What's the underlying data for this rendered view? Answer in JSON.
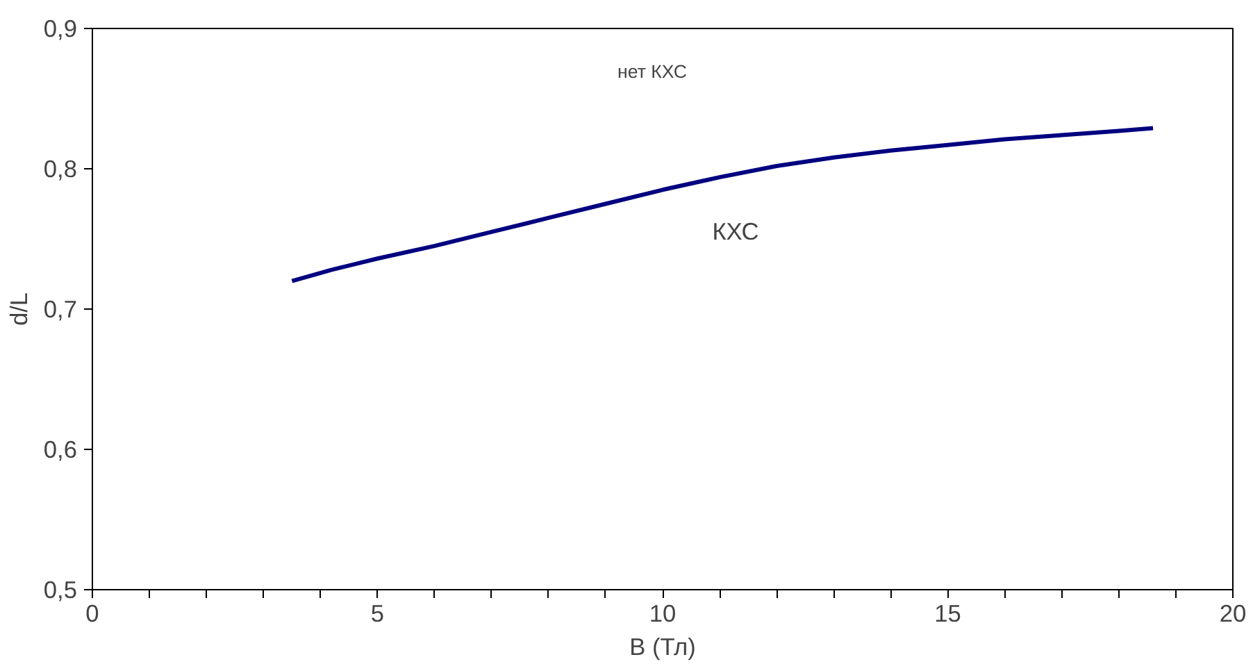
{
  "chart_data": {
    "type": "line",
    "xlabel": "B (Тл)",
    "ylabel": "d/L",
    "x": [
      3.5,
      4.2,
      5,
      6,
      7,
      8,
      9,
      10,
      11,
      12,
      13,
      14,
      15,
      16,
      17,
      18,
      18.6
    ],
    "series": [
      {
        "color": "#000080",
        "values": [
          0.72,
          0.728,
          0.736,
          0.745,
          0.755,
          0.765,
          0.775,
          0.785,
          0.794,
          0.802,
          0.808,
          0.813,
          0.817,
          0.821,
          0.824,
          0.827,
          0.829
        ]
      }
    ],
    "xlim": [
      0,
      20
    ],
    "xticks": [
      0,
      {
        "value": 1,
        "label": null
      },
      {
        "value": 2,
        "label": null
      },
      {
        "value": 3,
        "label": null
      },
      {
        "value": 4,
        "label": null
      },
      5,
      {
        "value": 6,
        "label": null
      },
      {
        "value": 7,
        "label": null
      },
      {
        "value": 8,
        "label": null
      },
      {
        "value": 9,
        "label": null
      },
      10,
      {
        "value": 11,
        "label": null
      },
      {
        "value": 12,
        "label": null
      },
      {
        "value": 13,
        "label": null
      },
      {
        "value": 14,
        "label": null
      },
      15,
      {
        "value": 16,
        "label": null
      },
      {
        "value": 17,
        "label": null
      },
      {
        "value": 18,
        "label": null
      },
      {
        "value": 19,
        "label": null
      },
      20
    ],
    "ylim": [
      0.5,
      0.9
    ],
    "yticks": [
      {
        "value": 0.5,
        "label": "0,5"
      },
      {
        "value": 0.6,
        "label": "0,6"
      },
      {
        "value": 0.7,
        "label": "0,7"
      },
      {
        "value": 0.8,
        "label": "0,8"
      },
      {
        "value": 0.9,
        "label": "0,9"
      }
    ],
    "annotations": [
      "нет КХС",
      "КХС"
    ],
    "grid": false,
    "marker": "none",
    "line_style": "solid"
  }
}
